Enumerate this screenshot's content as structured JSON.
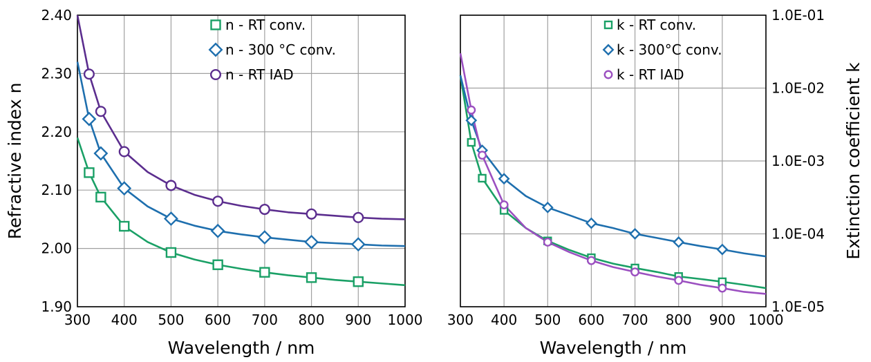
{
  "chart_data": [
    {
      "type": "line",
      "xlabel": "Wavelength / nm",
      "ylabel": "Refractive index n",
      "xlim": [
        300,
        1000
      ],
      "ylim": [
        1.9,
        2.4
      ],
      "yscale": "linear",
      "x_ticks": [
        "300",
        "400",
        "500",
        "600",
        "700",
        "800",
        "900",
        "1000"
      ],
      "y_ticks": [
        "1.90",
        "2.00",
        "2.10",
        "2.20",
        "2.30",
        "2.40"
      ],
      "grid": true,
      "legend_position": "top-right",
      "series": [
        {
          "name": "n - RT conv.",
          "color": "#1aa066",
          "marker": "square",
          "curve": {
            "x": [
              300,
              325,
              350,
              400,
              450,
              500,
              550,
              600,
              650,
              700,
              750,
              800,
              850,
              900,
              950,
              1000
            ],
            "y": [
              2.19,
              2.13,
              2.088,
              2.038,
              2.011,
              1.993,
              1.981,
              1.972,
              1.965,
              1.959,
              1.954,
              1.95,
              1.946,
              1.943,
              1.94,
              1.937
            ]
          },
          "markers": {
            "x": [
              325,
              350,
              400,
              500,
              600,
              700,
              800,
              900
            ],
            "y": [
              2.13,
              2.088,
              2.038,
              1.993,
              1.972,
              1.959,
              1.95,
              1.943
            ]
          }
        },
        {
          "name": "n - 300 °C conv.",
          "color": "#1e6fae",
          "marker": "diamond",
          "curve": {
            "x": [
              300,
              325,
              350,
              400,
              450,
              500,
              550,
              600,
              650,
              700,
              750,
              800,
              850,
              900,
              950,
              1000
            ],
            "y": [
              2.32,
              2.222,
              2.163,
              2.103,
              2.072,
              2.051,
              2.039,
              2.03,
              2.024,
              2.019,
              2.015,
              2.011,
              2.009,
              2.007,
              2.005,
              2.004
            ]
          },
          "markers": {
            "x": [
              325,
              350,
              400,
              500,
              600,
              700,
              800,
              900
            ],
            "y": [
              2.222,
              2.163,
              2.103,
              2.051,
              2.03,
              2.019,
              2.011,
              2.007
            ]
          }
        },
        {
          "name": "n - RT IAD",
          "color": "#5b2d8e",
          "marker": "circle",
          "curve": {
            "x": [
              300,
              325,
              350,
              400,
              450,
              500,
              550,
              600,
              650,
              700,
              750,
              800,
              850,
              900,
              950,
              1000
            ],
            "y": [
              2.4,
              2.299,
              2.235,
              2.166,
              2.131,
              2.108,
              2.092,
              2.081,
              2.073,
              2.067,
              2.062,
              2.059,
              2.056,
              2.053,
              2.051,
              2.05
            ]
          },
          "markers": {
            "x": [
              325,
              350,
              400,
              500,
              600,
              700,
              800,
              900
            ],
            "y": [
              2.299,
              2.235,
              2.166,
              2.108,
              2.081,
              2.067,
              2.059,
              2.053
            ]
          }
        }
      ]
    },
    {
      "type": "line",
      "xlabel": "Wavelength / nm",
      "ylabel": "Extinction coefficient k",
      "xlim": [
        300,
        1000
      ],
      "ylim": [
        1e-05,
        0.1
      ],
      "yscale": "log",
      "y_axis_side": "right",
      "x_ticks": [
        "300",
        "400",
        "500",
        "600",
        "700",
        "800",
        "900",
        "1000"
      ],
      "y_ticks": [
        "1.0E-05",
        "1.0E-04",
        "1.0E-03",
        "1.0E-02",
        "1.0E-01"
      ],
      "grid": true,
      "legend_position": "top-right",
      "series": [
        {
          "name": "k - RT conv.",
          "color": "#1aa066",
          "marker": "square",
          "curve": {
            "x": [
              300,
              325,
              350,
              400,
              450,
              500,
              550,
              600,
              650,
              700,
              750,
              800,
              850,
              900,
              950,
              1000
            ],
            "y": [
              0.015,
              0.0018,
              0.00058,
              0.00021,
              0.00012,
              8e-05,
              6e-05,
              4.7e-05,
              3.9e-05,
              3.4e-05,
              3e-05,
              2.6e-05,
              2.4e-05,
              2.2e-05,
              2e-05,
              1.8e-05
            ]
          },
          "markers": {
            "x": [
              325,
              350,
              400,
              500,
              600,
              700,
              800,
              900
            ],
            "y": [
              0.0018,
              0.00058,
              0.00021,
              8e-05,
              4.7e-05,
              3.4e-05,
              2.6e-05,
              2.2e-05
            ]
          }
        },
        {
          "name": "k - 300°C conv.",
          "color": "#1e6fae",
          "marker": "diamond",
          "curve": {
            "x": [
              300,
              325,
              350,
              400,
              450,
              500,
              550,
              600,
              650,
              700,
              750,
              800,
              850,
              900,
              950,
              1000
            ],
            "y": [
              0.015,
              0.0036,
              0.0014,
              0.00057,
              0.00033,
              0.00023,
              0.00018,
              0.00014,
              0.00012,
              0.0001,
              8.8e-05,
              7.7e-05,
              6.8e-05,
              6.1e-05,
              5.4e-05,
              4.9e-05
            ]
          },
          "markers": {
            "x": [
              325,
              350,
              400,
              500,
              600,
              700,
              800,
              900
            ],
            "y": [
              0.0036,
              0.0014,
              0.00057,
              0.00023,
              0.00014,
              0.0001,
              7.7e-05,
              6.1e-05
            ]
          }
        },
        {
          "name": "k - RT IAD",
          "color": "#9b4fc0",
          "marker": "circle",
          "curve": {
            "x": [
              300,
              325,
              350,
              400,
              450,
              500,
              550,
              600,
              650,
              700,
              750,
              800,
              850,
              900,
              950,
              1000
            ],
            "y": [
              0.03,
              0.005,
              0.0012,
              0.00025,
              0.00012,
              7.7e-05,
              5.6e-05,
              4.3e-05,
              3.5e-05,
              3e-05,
              2.6e-05,
              2.3e-05,
              2e-05,
              1.8e-05,
              1.6e-05,
              1.5e-05
            ]
          },
          "markers": {
            "x": [
              325,
              350,
              400,
              500,
              600,
              700,
              800,
              900
            ],
            "y": [
              0.005,
              0.0012,
              0.00025,
              7.7e-05,
              4.3e-05,
              3e-05,
              2.3e-05,
              1.8e-05
            ]
          }
        }
      ]
    }
  ]
}
